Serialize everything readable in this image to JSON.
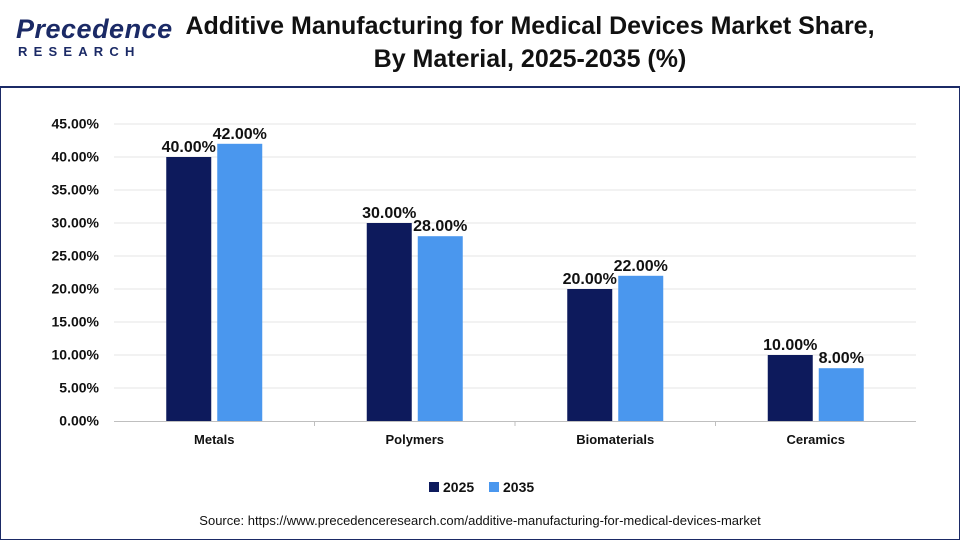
{
  "header": {
    "logo_word": "Precedence",
    "logo_sub": "RESEARCH",
    "title_line1": "Additive Manufacturing for Medical Devices Market Share,",
    "title_line2": "By Material, 2025-2035 (%)"
  },
  "colors": {
    "series_2025": "#0d1a5c",
    "series_2035": "#4a97ee",
    "brand": "#1b2a66",
    "grid": "#e6e6e6"
  },
  "chart_data": {
    "type": "bar",
    "title": "Additive Manufacturing for Medical Devices Market Share, By Material, 2025-2035 (%)",
    "categories": [
      "Metals",
      "Polymers",
      "Biomaterials",
      "Ceramics"
    ],
    "series": [
      {
        "name": "2025",
        "values": [
          40,
          30,
          20,
          10
        ],
        "labels": [
          "40.00%",
          "30.00%",
          "20.00%",
          "10.00%"
        ]
      },
      {
        "name": "2035",
        "values": [
          42,
          28,
          22,
          8
        ],
        "labels": [
          "42.00%",
          "28.00%",
          "22.00%",
          "8.00%"
        ]
      }
    ],
    "yticks": [
      "0.00%",
      "5.00%",
      "10.00%",
      "15.00%",
      "20.00%",
      "25.00%",
      "30.00%",
      "35.00%",
      "40.00%",
      "45.00%"
    ],
    "ylim": [
      0,
      45
    ],
    "xlabel": "",
    "ylabel": "",
    "grid": true,
    "legend": "bottom-center"
  },
  "source": "Source: https://www.precedenceresearch.com/additive-manufacturing-for-medical-devices-market"
}
